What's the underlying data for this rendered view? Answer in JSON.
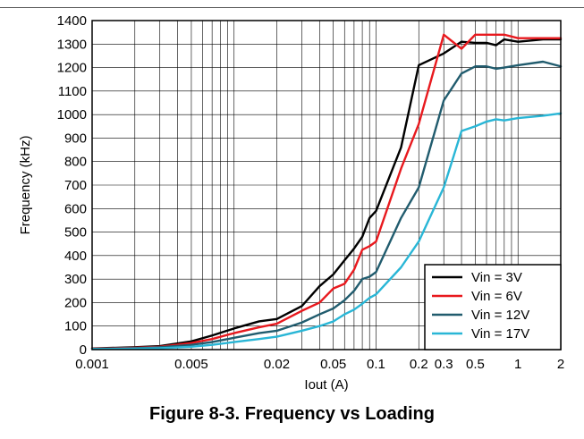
{
  "caption": "Figure 8-3. Frequency vs Loading",
  "chart_data": {
    "type": "line",
    "title": "",
    "xlabel": "Iout (A)",
    "ylabel": "Frequency (kHz)",
    "xscale": "log",
    "xlim": [
      0.001,
      2
    ],
    "ylim": [
      0,
      1400
    ],
    "xticks": [
      0.001,
      0.005,
      0.02,
      0.05,
      0.1,
      0.2,
      0.3,
      0.5,
      1,
      2
    ],
    "xtick_labels": [
      "0.001",
      "0.005",
      "0.02",
      "0.05",
      "0.1",
      "0.2",
      "0.3",
      "0.5",
      "1",
      "2"
    ],
    "yticks": [
      0,
      100,
      200,
      300,
      400,
      500,
      600,
      700,
      800,
      900,
      1000,
      1100,
      1200,
      1300,
      1400
    ],
    "grid": true,
    "legend_position": "bottom-right",
    "series": [
      {
        "name": "Vin = 3V",
        "color": "#000000",
        "points": [
          [
            0.001,
            5
          ],
          [
            0.002,
            10
          ],
          [
            0.003,
            15
          ],
          [
            0.005,
            35
          ],
          [
            0.007,
            60
          ],
          [
            0.01,
            90
          ],
          [
            0.015,
            120
          ],
          [
            0.02,
            130
          ],
          [
            0.03,
            185
          ],
          [
            0.04,
            270
          ],
          [
            0.05,
            320
          ],
          [
            0.06,
            380
          ],
          [
            0.07,
            430
          ],
          [
            0.08,
            480
          ],
          [
            0.09,
            560
          ],
          [
            0.1,
            590
          ],
          [
            0.15,
            860
          ],
          [
            0.2,
            1210
          ],
          [
            0.3,
            1260
          ],
          [
            0.4,
            1310
          ],
          [
            0.5,
            1305
          ],
          [
            0.6,
            1305
          ],
          [
            0.7,
            1295
          ],
          [
            0.8,
            1320
          ],
          [
            1,
            1310
          ],
          [
            1.5,
            1320
          ],
          [
            2,
            1320
          ]
        ]
      },
      {
        "name": "Vin = 6V",
        "color": "#e8191e",
        "points": [
          [
            0.001,
            4
          ],
          [
            0.002,
            8
          ],
          [
            0.003,
            12
          ],
          [
            0.005,
            28
          ],
          [
            0.007,
            45
          ],
          [
            0.01,
            70
          ],
          [
            0.015,
            95
          ],
          [
            0.02,
            110
          ],
          [
            0.03,
            165
          ],
          [
            0.04,
            200
          ],
          [
            0.05,
            260
          ],
          [
            0.06,
            280
          ],
          [
            0.07,
            340
          ],
          [
            0.08,
            425
          ],
          [
            0.09,
            440
          ],
          [
            0.1,
            460
          ],
          [
            0.15,
            770
          ],
          [
            0.2,
            960
          ],
          [
            0.3,
            1340
          ],
          [
            0.4,
            1280
          ],
          [
            0.5,
            1340
          ],
          [
            0.6,
            1340
          ],
          [
            0.7,
            1340
          ],
          [
            0.8,
            1340
          ],
          [
            1,
            1325
          ],
          [
            1.5,
            1325
          ],
          [
            2,
            1325
          ]
        ]
      },
      {
        "name": "Vin = 12V",
        "color": "#215c6e",
        "points": [
          [
            0.001,
            3
          ],
          [
            0.002,
            6
          ],
          [
            0.003,
            10
          ],
          [
            0.005,
            20
          ],
          [
            0.007,
            32
          ],
          [
            0.01,
            50
          ],
          [
            0.015,
            70
          ],
          [
            0.02,
            80
          ],
          [
            0.03,
            115
          ],
          [
            0.04,
            150
          ],
          [
            0.05,
            175
          ],
          [
            0.06,
            210
          ],
          [
            0.07,
            250
          ],
          [
            0.08,
            300
          ],
          [
            0.09,
            310
          ],
          [
            0.1,
            330
          ],
          [
            0.15,
            560
          ],
          [
            0.2,
            690
          ],
          [
            0.3,
            1060
          ],
          [
            0.4,
            1175
          ],
          [
            0.5,
            1205
          ],
          [
            0.6,
            1205
          ],
          [
            0.7,
            1195
          ],
          [
            0.8,
            1200
          ],
          [
            1,
            1210
          ],
          [
            1.5,
            1225
          ],
          [
            2,
            1205
          ]
        ]
      },
      {
        "name": "Vin = 17V",
        "color": "#29b6d6",
        "points": [
          [
            0.001,
            2
          ],
          [
            0.002,
            4
          ],
          [
            0.003,
            6
          ],
          [
            0.005,
            12
          ],
          [
            0.007,
            20
          ],
          [
            0.01,
            32
          ],
          [
            0.015,
            45
          ],
          [
            0.02,
            55
          ],
          [
            0.03,
            80
          ],
          [
            0.04,
            100
          ],
          [
            0.05,
            120
          ],
          [
            0.06,
            150
          ],
          [
            0.07,
            170
          ],
          [
            0.08,
            195
          ],
          [
            0.09,
            220
          ],
          [
            0.1,
            235
          ],
          [
            0.15,
            350
          ],
          [
            0.2,
            460
          ],
          [
            0.3,
            690
          ],
          [
            0.4,
            930
          ],
          [
            0.5,
            950
          ],
          [
            0.6,
            970
          ],
          [
            0.7,
            980
          ],
          [
            0.8,
            975
          ],
          [
            1,
            985
          ],
          [
            1.5,
            995
          ],
          [
            2,
            1005
          ]
        ]
      }
    ]
  }
}
